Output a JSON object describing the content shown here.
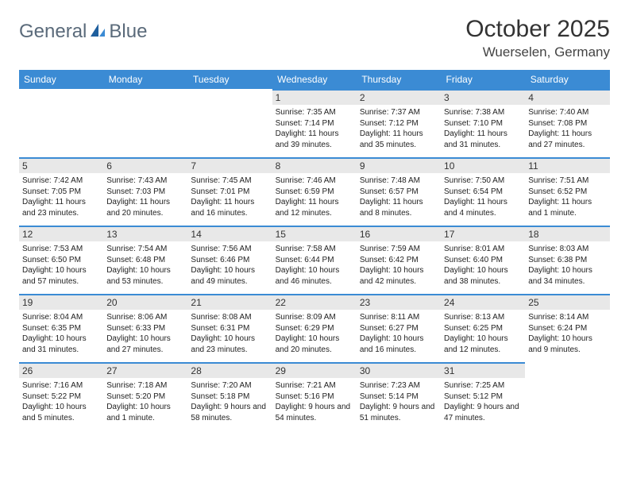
{
  "brand": {
    "part1": "General",
    "part2": "Blue"
  },
  "title": "October 2025",
  "location": "Wuerselen, Germany",
  "colors": {
    "header_bg": "#3b8bd4",
    "header_text": "#ffffff",
    "daynum_bg": "#e8e8e8",
    "border": "#3b8bd4",
    "logo_gray": "#5a6a7a",
    "logo_blue": "#2b78c2",
    "page_bg": "#ffffff"
  },
  "fonts": {
    "body": "Arial",
    "title_size": 30,
    "location_size": 17,
    "header_size": 12,
    "cell_size": 10
  },
  "days": [
    "Sunday",
    "Monday",
    "Tuesday",
    "Wednesday",
    "Thursday",
    "Friday",
    "Saturday"
  ],
  "weeks": [
    [
      {
        "n": "",
        "sr": "",
        "ss": "",
        "dl": ""
      },
      {
        "n": "",
        "sr": "",
        "ss": "",
        "dl": ""
      },
      {
        "n": "",
        "sr": "",
        "ss": "",
        "dl": ""
      },
      {
        "n": "1",
        "sr": "7:35 AM",
        "ss": "7:14 PM",
        "dl": "11 hours and 39 minutes."
      },
      {
        "n": "2",
        "sr": "7:37 AM",
        "ss": "7:12 PM",
        "dl": "11 hours and 35 minutes."
      },
      {
        "n": "3",
        "sr": "7:38 AM",
        "ss": "7:10 PM",
        "dl": "11 hours and 31 minutes."
      },
      {
        "n": "4",
        "sr": "7:40 AM",
        "ss": "7:08 PM",
        "dl": "11 hours and 27 minutes."
      }
    ],
    [
      {
        "n": "5",
        "sr": "7:42 AM",
        "ss": "7:05 PM",
        "dl": "11 hours and 23 minutes."
      },
      {
        "n": "6",
        "sr": "7:43 AM",
        "ss": "7:03 PM",
        "dl": "11 hours and 20 minutes."
      },
      {
        "n": "7",
        "sr": "7:45 AM",
        "ss": "7:01 PM",
        "dl": "11 hours and 16 minutes."
      },
      {
        "n": "8",
        "sr": "7:46 AM",
        "ss": "6:59 PM",
        "dl": "11 hours and 12 minutes."
      },
      {
        "n": "9",
        "sr": "7:48 AM",
        "ss": "6:57 PM",
        "dl": "11 hours and 8 minutes."
      },
      {
        "n": "10",
        "sr": "7:50 AM",
        "ss": "6:54 PM",
        "dl": "11 hours and 4 minutes."
      },
      {
        "n": "11",
        "sr": "7:51 AM",
        "ss": "6:52 PM",
        "dl": "11 hours and 1 minute."
      }
    ],
    [
      {
        "n": "12",
        "sr": "7:53 AM",
        "ss": "6:50 PM",
        "dl": "10 hours and 57 minutes."
      },
      {
        "n": "13",
        "sr": "7:54 AM",
        "ss": "6:48 PM",
        "dl": "10 hours and 53 minutes."
      },
      {
        "n": "14",
        "sr": "7:56 AM",
        "ss": "6:46 PM",
        "dl": "10 hours and 49 minutes."
      },
      {
        "n": "15",
        "sr": "7:58 AM",
        "ss": "6:44 PM",
        "dl": "10 hours and 46 minutes."
      },
      {
        "n": "16",
        "sr": "7:59 AM",
        "ss": "6:42 PM",
        "dl": "10 hours and 42 minutes."
      },
      {
        "n": "17",
        "sr": "8:01 AM",
        "ss": "6:40 PM",
        "dl": "10 hours and 38 minutes."
      },
      {
        "n": "18",
        "sr": "8:03 AM",
        "ss": "6:38 PM",
        "dl": "10 hours and 34 minutes."
      }
    ],
    [
      {
        "n": "19",
        "sr": "8:04 AM",
        "ss": "6:35 PM",
        "dl": "10 hours and 31 minutes."
      },
      {
        "n": "20",
        "sr": "8:06 AM",
        "ss": "6:33 PM",
        "dl": "10 hours and 27 minutes."
      },
      {
        "n": "21",
        "sr": "8:08 AM",
        "ss": "6:31 PM",
        "dl": "10 hours and 23 minutes."
      },
      {
        "n": "22",
        "sr": "8:09 AM",
        "ss": "6:29 PM",
        "dl": "10 hours and 20 minutes."
      },
      {
        "n": "23",
        "sr": "8:11 AM",
        "ss": "6:27 PM",
        "dl": "10 hours and 16 minutes."
      },
      {
        "n": "24",
        "sr": "8:13 AM",
        "ss": "6:25 PM",
        "dl": "10 hours and 12 minutes."
      },
      {
        "n": "25",
        "sr": "8:14 AM",
        "ss": "6:24 PM",
        "dl": "10 hours and 9 minutes."
      }
    ],
    [
      {
        "n": "26",
        "sr": "7:16 AM",
        "ss": "5:22 PM",
        "dl": "10 hours and 5 minutes."
      },
      {
        "n": "27",
        "sr": "7:18 AM",
        "ss": "5:20 PM",
        "dl": "10 hours and 1 minute."
      },
      {
        "n": "28",
        "sr": "7:20 AM",
        "ss": "5:18 PM",
        "dl": "9 hours and 58 minutes."
      },
      {
        "n": "29",
        "sr": "7:21 AM",
        "ss": "5:16 PM",
        "dl": "9 hours and 54 minutes."
      },
      {
        "n": "30",
        "sr": "7:23 AM",
        "ss": "5:14 PM",
        "dl": "9 hours and 51 minutes."
      },
      {
        "n": "31",
        "sr": "7:25 AM",
        "ss": "5:12 PM",
        "dl": "9 hours and 47 minutes."
      },
      {
        "n": "",
        "sr": "",
        "ss": "",
        "dl": ""
      }
    ]
  ],
  "labels": {
    "sunrise": "Sunrise:",
    "sunset": "Sunset:",
    "daylight": "Daylight:"
  }
}
